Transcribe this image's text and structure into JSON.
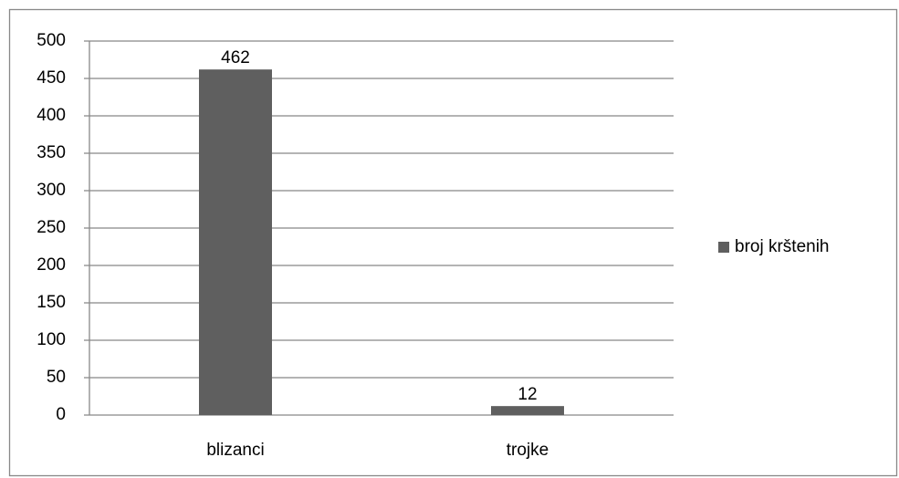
{
  "chart_data": {
    "type": "bar",
    "categories": [
      "blizanci",
      "trojke"
    ],
    "series": [
      {
        "name": "broj krštenih",
        "color": "#5f5f5f",
        "values": [
          462,
          12
        ]
      }
    ],
    "ylim": [
      0,
      500
    ],
    "yticks": [
      0,
      50,
      100,
      150,
      200,
      250,
      300,
      350,
      400,
      450,
      500
    ],
    "grid": true,
    "legend": "right",
    "data_labels": true
  }
}
